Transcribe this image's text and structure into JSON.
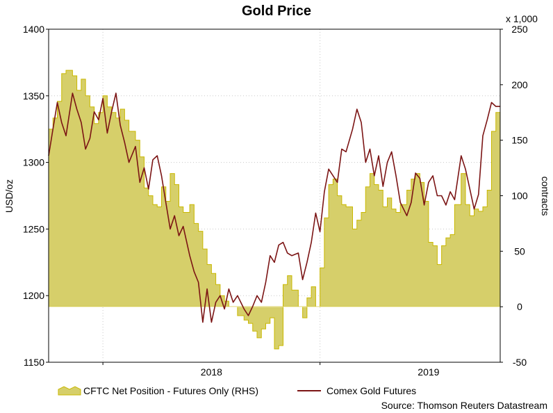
{
  "chart_data": {
    "type": "line",
    "title": "Gold Price",
    "source": "Source: Thomson Reuters Datastream",
    "y_left": {
      "label": "USD/oz",
      "range": [
        1150,
        1400
      ],
      "ticks": [
        1150,
        1200,
        1250,
        1300,
        1350,
        1400
      ]
    },
    "y_right": {
      "label": "contracts",
      "multiplier": "x 1,000",
      "range": [
        -50,
        250
      ],
      "ticks": [
        -50,
        0,
        50,
        100,
        150,
        200,
        250
      ]
    },
    "x_axis": {
      "range": [
        2017.25,
        2019.33
      ],
      "ticks": [
        {
          "label": "2018",
          "value": 2018.0
        },
        {
          "label": "2019",
          "value": 2019.0
        }
      ],
      "gridlines": [
        2017.5,
        2018.5
      ]
    },
    "grid": true,
    "legend": {
      "position": "bottom-left"
    },
    "series": [
      {
        "name": "CFTC Net Position - Futures Only (RHS)",
        "type": "area",
        "axis": "right",
        "color": "#d6cf6a",
        "edge_color": "#c9b800",
        "x": [
          2017.25,
          2017.27,
          2017.29,
          2017.31,
          2017.33,
          2017.36,
          2017.38,
          2017.4,
          2017.42,
          2017.44,
          2017.46,
          2017.48,
          2017.5,
          2017.52,
          2017.54,
          2017.56,
          2017.58,
          2017.6,
          2017.62,
          2017.65,
          2017.67,
          2017.69,
          2017.71,
          2017.73,
          2017.75,
          2017.77,
          2017.79,
          2017.81,
          2017.83,
          2017.85,
          2017.87,
          2017.9,
          2017.92,
          2017.94,
          2017.96,
          2017.98,
          2018.0,
          2018.02,
          2018.04,
          2018.06,
          2018.08,
          2018.1,
          2018.12,
          2018.15,
          2018.17,
          2018.19,
          2018.21,
          2018.23,
          2018.25,
          2018.27,
          2018.29,
          2018.31,
          2018.33,
          2018.35,
          2018.37,
          2018.4,
          2018.42,
          2018.44,
          2018.46,
          2018.48,
          2018.5,
          2018.52,
          2018.54,
          2018.56,
          2018.58,
          2018.6,
          2018.62,
          2018.65,
          2018.67,
          2018.69,
          2018.71,
          2018.73,
          2018.75,
          2018.77,
          2018.79,
          2018.81,
          2018.83,
          2018.85,
          2018.87,
          2018.9,
          2018.92,
          2018.94,
          2018.96,
          2018.98,
          2019.0,
          2019.02,
          2019.04,
          2019.06,
          2019.08,
          2019.1,
          2019.12,
          2019.15,
          2019.17,
          2019.19,
          2019.21,
          2019.23,
          2019.25,
          2019.27,
          2019.29,
          2019.31,
          2019.33
        ],
        "values": [
          160,
          170,
          185,
          210,
          213,
          208,
          195,
          205,
          190,
          180,
          165,
          175,
          190,
          180,
          175,
          170,
          178,
          168,
          158,
          150,
          135,
          107,
          100,
          92,
          90,
          108,
          95,
          120,
          110,
          90,
          85,
          92,
          75,
          68,
          52,
          38,
          30,
          20,
          10,
          5,
          0,
          0,
          -8,
          -12,
          -15,
          -22,
          -28,
          -20,
          -15,
          -10,
          -38,
          -35,
          20,
          28,
          15,
          0,
          -10,
          8,
          18,
          0,
          35,
          80,
          110,
          115,
          100,
          92,
          90,
          70,
          78,
          85,
          108,
          120,
          110,
          105,
          90,
          98,
          88,
          85,
          92,
          105,
          115,
          120,
          112,
          95,
          58,
          55,
          38,
          55,
          62,
          65,
          92,
          120,
          92,
          82,
          88,
          86,
          90,
          105,
          158,
          175,
          178
        ]
      },
      {
        "name": "Comex Gold Futures",
        "type": "line",
        "axis": "left",
        "color": "#7b1414",
        "x": [
          2017.25,
          2017.27,
          2017.29,
          2017.31,
          2017.33,
          2017.36,
          2017.38,
          2017.4,
          2017.42,
          2017.44,
          2017.46,
          2017.48,
          2017.5,
          2017.52,
          2017.54,
          2017.56,
          2017.58,
          2017.6,
          2017.62,
          2017.65,
          2017.67,
          2017.69,
          2017.71,
          2017.73,
          2017.75,
          2017.77,
          2017.79,
          2017.81,
          2017.83,
          2017.85,
          2017.87,
          2017.9,
          2017.92,
          2017.94,
          2017.96,
          2017.98,
          2018.0,
          2018.02,
          2018.04,
          2018.06,
          2018.08,
          2018.1,
          2018.12,
          2018.15,
          2018.17,
          2018.19,
          2018.21,
          2018.23,
          2018.25,
          2018.27,
          2018.29,
          2018.31,
          2018.33,
          2018.35,
          2018.37,
          2018.4,
          2018.42,
          2018.44,
          2018.46,
          2018.48,
          2018.5,
          2018.52,
          2018.54,
          2018.56,
          2018.58,
          2018.6,
          2018.62,
          2018.65,
          2018.67,
          2018.69,
          2018.71,
          2018.73,
          2018.75,
          2018.77,
          2018.79,
          2018.81,
          2018.83,
          2018.85,
          2018.87,
          2018.9,
          2018.92,
          2018.94,
          2018.96,
          2018.98,
          2019.0,
          2019.02,
          2019.04,
          2019.06,
          2019.08,
          2019.1,
          2019.12,
          2019.15,
          2019.17,
          2019.19,
          2019.21,
          2019.23,
          2019.25,
          2019.27,
          2019.29,
          2019.31,
          2019.33
        ],
        "values": [
          1305,
          1325,
          1345,
          1330,
          1320,
          1352,
          1340,
          1330,
          1310,
          1318,
          1338,
          1332,
          1348,
          1322,
          1338,
          1352,
          1328,
          1315,
          1300,
          1312,
          1285,
          1296,
          1280,
          1302,
          1305,
          1290,
          1270,
          1250,
          1260,
          1245,
          1252,
          1230,
          1218,
          1210,
          1180,
          1205,
          1180,
          1195,
          1200,
          1190,
          1205,
          1195,
          1200,
          1190,
          1185,
          1192,
          1200,
          1195,
          1210,
          1230,
          1225,
          1238,
          1240,
          1232,
          1230,
          1232,
          1212,
          1225,
          1240,
          1262,
          1248,
          1278,
          1295,
          1290,
          1285,
          1310,
          1308,
          1325,
          1340,
          1330,
          1300,
          1310,
          1290,
          1305,
          1282,
          1300,
          1308,
          1290,
          1270,
          1260,
          1270,
          1292,
          1288,
          1268,
          1285,
          1290,
          1275,
          1275,
          1268,
          1278,
          1272,
          1305,
          1295,
          1280,
          1265,
          1276,
          1320,
          1332,
          1345,
          1342,
          1342
        ]
      }
    ]
  }
}
